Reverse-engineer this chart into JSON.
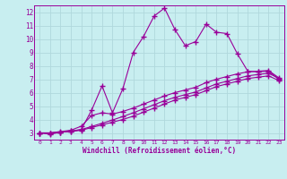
{
  "title": "",
  "xlabel": "Windchill (Refroidissement éolien,°C)",
  "ylabel": "",
  "bg_color": "#c8eef0",
  "line_color": "#990099",
  "grid_color": "#b0d8dc",
  "xlim": [
    -0.5,
    23.5
  ],
  "ylim": [
    2.5,
    12.5
  ],
  "yticks": [
    3,
    4,
    5,
    6,
    7,
    8,
    9,
    10,
    11,
    12
  ],
  "xticks": [
    0,
    1,
    2,
    3,
    4,
    5,
    6,
    7,
    8,
    9,
    10,
    11,
    12,
    13,
    14,
    15,
    16,
    17,
    18,
    19,
    20,
    21,
    22,
    23
  ],
  "line1_x": [
    0,
    1,
    2,
    3,
    4,
    5,
    6,
    7,
    8,
    9,
    10,
    11,
    12,
    13,
    14,
    15,
    16,
    17,
    18,
    19,
    20,
    21,
    22,
    23
  ],
  "line1_y": [
    3.0,
    2.9,
    3.05,
    3.15,
    3.25,
    4.7,
    6.5,
    4.5,
    6.3,
    9.0,
    10.2,
    11.7,
    12.3,
    10.7,
    9.5,
    9.8,
    11.1,
    10.5,
    10.4,
    8.9,
    7.6,
    7.55,
    7.6,
    7.0
  ],
  "line2_x": [
    0,
    1,
    2,
    3,
    4,
    5,
    6,
    7,
    8,
    9,
    10,
    11,
    12,
    13,
    14,
    15,
    16,
    17,
    18,
    19,
    20,
    21,
    22,
    23
  ],
  "line2_y": [
    3.0,
    3.0,
    3.1,
    3.2,
    3.5,
    4.3,
    4.5,
    4.4,
    4.6,
    4.85,
    5.15,
    5.45,
    5.75,
    6.0,
    6.2,
    6.4,
    6.75,
    7.0,
    7.2,
    7.4,
    7.55,
    7.6,
    7.65,
    7.1
  ],
  "line3_x": [
    0,
    1,
    2,
    3,
    4,
    5,
    6,
    7,
    8,
    9,
    10,
    11,
    12,
    13,
    14,
    15,
    16,
    17,
    18,
    19,
    20,
    21,
    22,
    23
  ],
  "line3_y": [
    3.0,
    3.0,
    3.05,
    3.1,
    3.2,
    3.4,
    3.6,
    3.8,
    4.0,
    4.25,
    4.55,
    4.85,
    5.15,
    5.45,
    5.65,
    5.85,
    6.15,
    6.45,
    6.65,
    6.85,
    7.05,
    7.15,
    7.25,
    6.9
  ],
  "line4_x": [
    0,
    1,
    2,
    3,
    4,
    5,
    6,
    7,
    8,
    9,
    10,
    11,
    12,
    13,
    14,
    15,
    16,
    17,
    18,
    19,
    20,
    21,
    22,
    23
  ],
  "line4_y": [
    3.0,
    3.0,
    3.05,
    3.12,
    3.25,
    3.48,
    3.72,
    3.96,
    4.22,
    4.5,
    4.8,
    5.1,
    5.4,
    5.65,
    5.85,
    6.05,
    6.35,
    6.65,
    6.85,
    7.05,
    7.25,
    7.35,
    7.45,
    7.05
  ]
}
